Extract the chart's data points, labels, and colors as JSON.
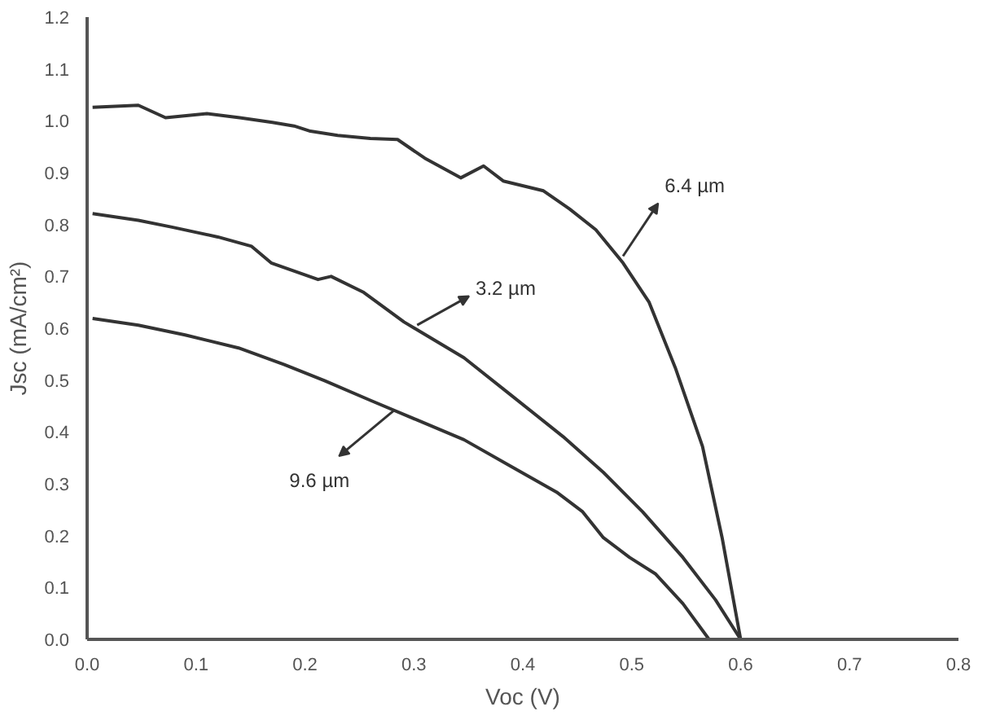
{
  "chart_data": {
    "type": "line",
    "xlabel": "Voc (V)",
    "ylabel": "Jsc (mA/cm²)",
    "xlim": [
      0,
      0.8
    ],
    "ylim": [
      0,
      1.2
    ],
    "xticks": [
      {
        "value": 0,
        "label": "0.0"
      },
      0.1,
      0.2,
      0.3,
      0.4,
      0.5,
      0.6,
      0.7,
      0.8
    ],
    "yticks": [
      {
        "value": 0,
        "label": "0.0"
      },
      0.1,
      0.2,
      0.3,
      0.4,
      0.5,
      0.6,
      0.7,
      0.8,
      0.9,
      {
        "value": 1,
        "label": "1.0"
      },
      1.1,
      1.2
    ],
    "grid": false,
    "marker": "none",
    "line_style": "solid",
    "series": [
      {
        "color": "#333333",
        "x": [
          0.005,
          0.047,
          0.072,
          0.11,
          0.14,
          0.17,
          0.19,
          0.205,
          0.23,
          0.26,
          0.285,
          0.31,
          0.343,
          0.364,
          0.382,
          0.419,
          0.443,
          0.467,
          0.492,
          0.516,
          0.54,
          0.565,
          0.583,
          0.6
        ],
        "values": [
          1.026,
          1.03,
          1.006,
          1.014,
          1.006,
          0.997,
          0.99,
          0.98,
          0.972,
          0.966,
          0.964,
          0.928,
          0.89,
          0.913,
          0.884,
          0.865,
          0.83,
          0.79,
          0.726,
          0.65,
          0.524,
          0.372,
          0.196,
          0
        ]
      },
      {
        "color": "#333333",
        "x": [
          0.005,
          0.047,
          0.078,
          0.12,
          0.151,
          0.169,
          0.212,
          0.224,
          0.254,
          0.291,
          0.346,
          0.388,
          0.437,
          0.474,
          0.51,
          0.547,
          0.577,
          0.6
        ],
        "values": [
          0.821,
          0.808,
          0.795,
          0.776,
          0.758,
          0.726,
          0.694,
          0.7,
          0.669,
          0.612,
          0.543,
          0.473,
          0.391,
          0.322,
          0.246,
          0.158,
          0.076,
          0
        ]
      },
      {
        "color": "#333333",
        "x": [
          0.005,
          0.047,
          0.09,
          0.139,
          0.181,
          0.218,
          0.26,
          0.303,
          0.346,
          0.388,
          0.431,
          0.455,
          0.474,
          0.498,
          0.522,
          0.547,
          0.571
        ],
        "values": [
          0.619,
          0.606,
          0.587,
          0.562,
          0.53,
          0.499,
          0.461,
          0.423,
          0.385,
          0.335,
          0.284,
          0.246,
          0.196,
          0.158,
          0.126,
          0.069,
          0
        ]
      }
    ],
    "annotations": [
      {
        "text": "6.4 µm",
        "x": 0.492,
        "y": 0.739
      },
      {
        "text": "3.2 µm",
        "x": 0.303,
        "y": 0.606
      },
      {
        "text": "9.6 µm",
        "x": 0.282,
        "y": 0.442
      }
    ]
  }
}
